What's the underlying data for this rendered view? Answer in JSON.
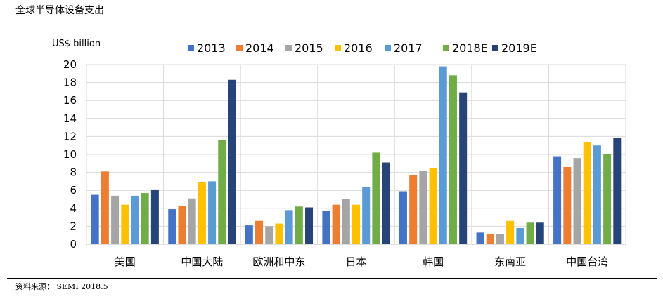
{
  "header": {
    "title": "全球半导体设备支出"
  },
  "footer": {
    "source": "资料来源： SEMI 2018.5"
  },
  "chart_data": {
    "type": "bar",
    "title": "",
    "ylabel": "US$ billion",
    "xlabel": "",
    "ylim": [
      0,
      20
    ],
    "ytick_step": 2,
    "grid": true,
    "legend_position": "top",
    "categories": [
      "美国",
      "中国大陆",
      "欧洲和中东",
      "日本",
      "韩国",
      "东南亚",
      "中国台湾"
    ],
    "series": [
      {
        "name": "2013",
        "color": "#4472C4",
        "values": [
          5.5,
          3.9,
          2.1,
          3.7,
          5.9,
          1.3,
          9.8
        ]
      },
      {
        "name": "2014",
        "color": "#ED7D31",
        "values": [
          8.1,
          4.3,
          2.6,
          4.4,
          7.7,
          1.1,
          8.6
        ]
      },
      {
        "name": "2015",
        "color": "#A5A5A5",
        "values": [
          5.4,
          5.1,
          2.0,
          5.0,
          8.2,
          1.1,
          9.6
        ]
      },
      {
        "name": "2016",
        "color": "#FFC000",
        "values": [
          4.4,
          6.9,
          2.3,
          4.4,
          8.5,
          2.6,
          11.4
        ]
      },
      {
        "name": "2017",
        "color": "#5B9BD5",
        "values": [
          5.4,
          7.0,
          3.8,
          6.4,
          19.8,
          1.8,
          11.0
        ]
      },
      {
        "name": "2018E",
        "color": "#70AD47",
        "values": [
          5.7,
          11.6,
          4.2,
          10.2,
          18.8,
          2.4,
          10.0
        ]
      },
      {
        "name": "2019E",
        "color": "#264478",
        "values": [
          6.1,
          18.3,
          4.1,
          9.1,
          16.9,
          2.4,
          11.8
        ]
      }
    ]
  }
}
